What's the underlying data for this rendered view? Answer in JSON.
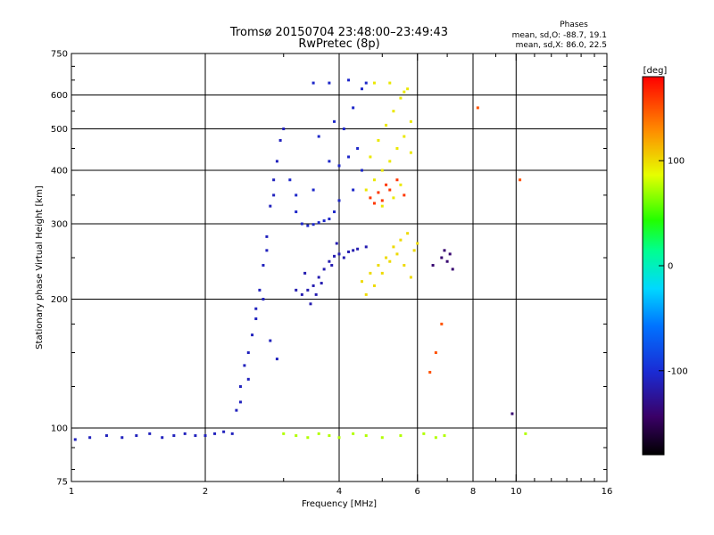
{
  "chart_data": {
    "type": "scatter",
    "title": "Tromsø 20150704 23:48:00–23:49:43",
    "subtitle": "RwPretec (8p)",
    "xlabel": "Frequency [MHz]",
    "ylabel": "Stationary phase Virtual Height [km]",
    "x_scale": "log",
    "y_scale": "log",
    "xlim": [
      1,
      16
    ],
    "ylim": [
      75,
      750
    ],
    "x_ticks": [
      1,
      2,
      4,
      6,
      8,
      10,
      16
    ],
    "x_tick_labels": [
      "1",
      "2",
      "4",
      "6",
      "8",
      "10",
      "16"
    ],
    "y_ticks": [
      75,
      100,
      200,
      300,
      400,
      500,
      600,
      750
    ],
    "y_tick_labels": [
      "75",
      "100",
      "200",
      "300",
      "400",
      "500",
      "600",
      "750"
    ],
    "grid": true,
    "annotation": {
      "title": "Phases",
      "line_o": "mean, sd,O: -88.7, 19.1",
      "line_x": "mean, sd,X:  86.0, 22.5"
    },
    "colorbar": {
      "label": "[deg]",
      "ticks": [
        100,
        0,
        -100
      ],
      "tick_labels": [
        "100",
        "0",
        "-100"
      ],
      "range": [
        -180,
        180
      ]
    },
    "series": [
      {
        "color_phase": -110,
        "points": [
          [
            1.02,
            94
          ],
          [
            1.1,
            95
          ],
          [
            1.2,
            96
          ],
          [
            1.3,
            95
          ],
          [
            1.4,
            96
          ],
          [
            1.5,
            97
          ],
          [
            1.6,
            95
          ],
          [
            1.7,
            96
          ],
          [
            1.8,
            97
          ],
          [
            1.9,
            96
          ],
          [
            2.0,
            96
          ],
          [
            2.1,
            97
          ],
          [
            2.2,
            98
          ],
          [
            2.3,
            97
          ],
          [
            2.35,
            110
          ],
          [
            2.4,
            125
          ],
          [
            2.45,
            140
          ],
          [
            2.5,
            150
          ],
          [
            2.55,
            165
          ],
          [
            2.6,
            180
          ],
          [
            2.65,
            210
          ],
          [
            2.7,
            240
          ],
          [
            2.75,
            280
          ],
          [
            2.8,
            330
          ],
          [
            2.85,
            380
          ],
          [
            2.9,
            420
          ],
          [
            2.95,
            470
          ],
          [
            3.0,
            500
          ],
          [
            2.7,
            200
          ],
          [
            2.8,
            160
          ],
          [
            2.9,
            145
          ],
          [
            2.5,
            130
          ],
          [
            2.4,
            115
          ],
          [
            2.6,
            190
          ],
          [
            2.75,
            260
          ],
          [
            2.85,
            350
          ]
        ]
      },
      {
        "color_phase": -105,
        "points": [
          [
            3.1,
            380
          ],
          [
            3.2,
            320
          ],
          [
            3.3,
            300
          ],
          [
            3.4,
            297
          ],
          [
            3.5,
            299
          ],
          [
            3.6,
            302
          ],
          [
            3.7,
            305
          ],
          [
            3.8,
            308
          ],
          [
            3.9,
            320
          ],
          [
            4.0,
            340
          ],
          [
            3.2,
            350
          ],
          [
            3.5,
            360
          ],
          [
            3.8,
            420
          ],
          [
            4.1,
            500
          ],
          [
            4.3,
            560
          ],
          [
            4.5,
            620
          ],
          [
            3.5,
            640
          ],
          [
            3.8,
            640
          ],
          [
            4.2,
            650
          ],
          [
            4.6,
            640
          ],
          [
            4.0,
            410
          ],
          [
            4.4,
            450
          ],
          [
            3.6,
            480
          ],
          [
            3.9,
            520
          ],
          [
            4.2,
            430
          ],
          [
            4.5,
            400
          ],
          [
            4.3,
            360
          ]
        ]
      },
      {
        "color_phase": -115,
        "points": [
          [
            3.2,
            210
          ],
          [
            3.3,
            205
          ],
          [
            3.4,
            210
          ],
          [
            3.5,
            215
          ],
          [
            3.6,
            225
          ],
          [
            3.7,
            235
          ],
          [
            3.8,
            245
          ],
          [
            3.9,
            252
          ],
          [
            4.0,
            255
          ],
          [
            4.2,
            258
          ],
          [
            4.4,
            262
          ],
          [
            4.6,
            265
          ],
          [
            3.45,
            195
          ],
          [
            3.65,
            218
          ],
          [
            3.85,
            240
          ],
          [
            4.1,
            250
          ],
          [
            4.3,
            260
          ],
          [
            3.95,
            270
          ],
          [
            3.35,
            230
          ],
          [
            3.55,
            205
          ]
        ]
      },
      {
        "color_phase": 95,
        "points": [
          [
            4.6,
            360
          ],
          [
            4.8,
            380
          ],
          [
            5.0,
            400
          ],
          [
            5.2,
            420
          ],
          [
            5.4,
            450
          ],
          [
            5.6,
            480
          ],
          [
            5.8,
            520
          ],
          [
            4.7,
            430
          ],
          [
            4.9,
            470
          ],
          [
            5.1,
            510
          ],
          [
            5.3,
            550
          ],
          [
            5.5,
            590
          ],
          [
            5.7,
            620
          ],
          [
            4.8,
            640
          ],
          [
            5.2,
            640
          ],
          [
            5.6,
            610
          ],
          [
            5.0,
            330
          ],
          [
            5.3,
            345
          ],
          [
            5.5,
            370
          ],
          [
            5.8,
            440
          ]
        ]
      },
      {
        "color_phase": 100,
        "points": [
          [
            4.5,
            220
          ],
          [
            4.7,
            230
          ],
          [
            4.9,
            240
          ],
          [
            5.1,
            250
          ],
          [
            5.3,
            265
          ],
          [
            5.5,
            275
          ],
          [
            5.7,
            285
          ],
          [
            5.9,
            260
          ],
          [
            4.6,
            205
          ],
          [
            4.8,
            215
          ],
          [
            5.0,
            230
          ],
          [
            5.2,
            245
          ],
          [
            5.4,
            255
          ],
          [
            5.6,
            240
          ],
          [
            5.8,
            225
          ],
          [
            6.0,
            270
          ]
        ]
      },
      {
        "color_phase": 160,
        "points": [
          [
            4.7,
            345
          ],
          [
            4.9,
            355
          ],
          [
            5.0,
            340
          ],
          [
            5.1,
            370
          ],
          [
            4.8,
            335
          ],
          [
            5.2,
            360
          ],
          [
            5.4,
            380
          ],
          [
            5.6,
            350
          ]
        ]
      },
      {
        "color_phase": 75,
        "points": [
          [
            3.0,
            97
          ],
          [
            3.2,
            96
          ],
          [
            3.4,
            95
          ],
          [
            3.6,
            97
          ],
          [
            3.8,
            96
          ],
          [
            4.0,
            95
          ],
          [
            4.3,
            97
          ],
          [
            4.6,
            96
          ],
          [
            5.0,
            95
          ],
          [
            5.5,
            96
          ],
          [
            6.2,
            97
          ],
          [
            6.6,
            95
          ],
          [
            6.9,
            96
          ],
          [
            10.5,
            97
          ]
        ]
      },
      {
        "color_phase": -140,
        "points": [
          [
            6.5,
            240
          ],
          [
            6.8,
            250
          ],
          [
            7.0,
            245
          ],
          [
            7.2,
            235
          ],
          [
            6.9,
            260
          ],
          [
            7.1,
            255
          ],
          [
            9.8,
            108
          ]
        ]
      },
      {
        "color_phase": 150,
        "points": [
          [
            6.4,
            135
          ],
          [
            6.6,
            150
          ],
          [
            6.8,
            175
          ],
          [
            8.2,
            560
          ],
          [
            10.2,
            380
          ]
        ]
      }
    ]
  }
}
